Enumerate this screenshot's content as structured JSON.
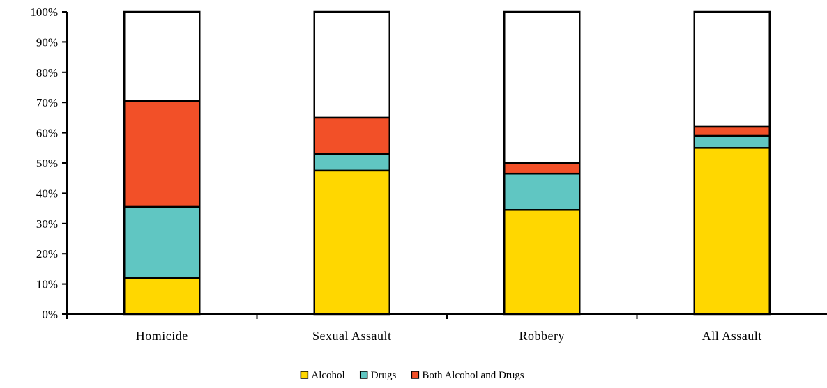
{
  "chart_data": {
    "type": "bar",
    "stacked": true,
    "categories": [
      "Homicide",
      "Sexual Assault",
      "Robbery",
      "All Assault"
    ],
    "series": [
      {
        "name": "Alcohol",
        "color": "#FFD700",
        "values": [
          12,
          47.5,
          34.5,
          55
        ]
      },
      {
        "name": "Drugs",
        "color": "#60C6C2",
        "values": [
          23.5,
          5.5,
          12,
          4
        ]
      },
      {
        "name": "Both Alcohol and Drugs",
        "color": "#F25028",
        "values": [
          35,
          12,
          3.5,
          3
        ]
      }
    ],
    "remainder_color": "#FFFFFF",
    "ylim": [
      0,
      100
    ],
    "yticks": [
      "0%",
      "10%",
      "20%",
      "30%",
      "40%",
      "50%",
      "60%",
      "70%",
      "80%",
      "90%",
      "100%"
    ],
    "ytick_values": [
      0,
      10,
      20,
      30,
      40,
      50,
      60,
      70,
      80,
      90,
      100
    ],
    "grid": false,
    "legend_position": "bottom"
  }
}
